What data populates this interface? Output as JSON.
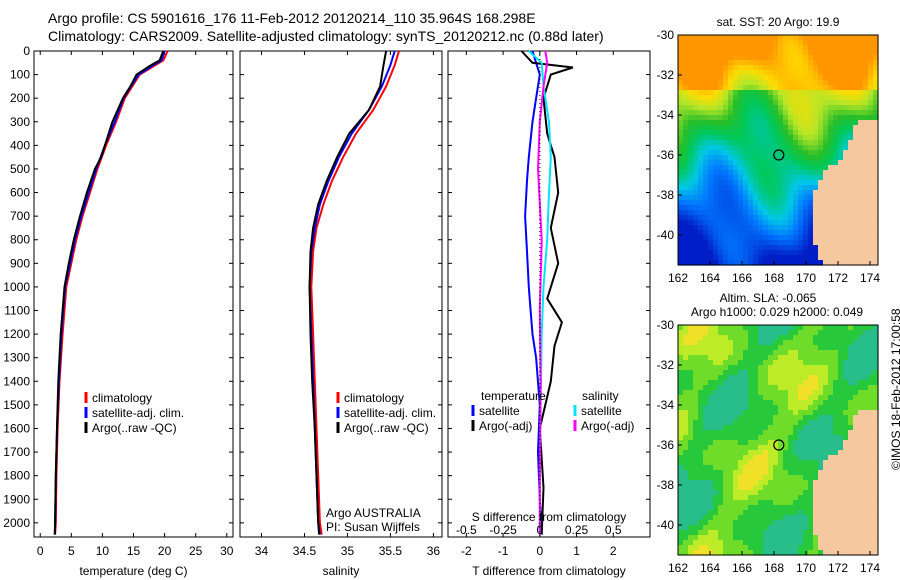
{
  "header": {
    "line1": "Argo profile: CS 5901616_176 11-Feb-2012 20120214_110 35.964S 168.298E",
    "line2": "Climatology: CARS2009. Satellite-adjusted climatology: synTS_20120212.nc (0.88d later)"
  },
  "colors": {
    "climatology": "#ff0000",
    "satellite": "#0000ff",
    "argo": "#000000",
    "sal_satellite": "#00e5ff",
    "sal_argo": "#ff00ff"
  },
  "depth_axis": {
    "ticks": [
      0,
      100,
      200,
      300,
      400,
      500,
      600,
      700,
      800,
      900,
      1000,
      1100,
      1200,
      1300,
      1400,
      1500,
      1600,
      1700,
      1800,
      1900,
      2000
    ]
  },
  "chart_data": [
    {
      "type": "line",
      "id": "temperature",
      "xlabel": "temperature (deg C)",
      "xlim": [
        -1,
        31
      ],
      "ylim": [
        2060,
        0
      ],
      "xticks": [
        0,
        5,
        10,
        15,
        20,
        25,
        30
      ],
      "legend": [
        "climatology",
        "satellite-adj. clim.",
        "Argo(..raw -QC)"
      ],
      "series": [
        {
          "name": "climatology",
          "color": "#ff0000",
          "x": [
            20.5,
            19.8,
            18.5,
            16.0,
            14.8,
            13.6,
            12.2,
            10.6,
            9.2,
            8.0,
            6.8,
            5.8,
            5.0,
            4.2,
            3.6,
            3.1,
            2.8,
            2.6,
            2.5,
            2.4
          ],
          "y": [
            0,
            40,
            60,
            100,
            150,
            200,
            300,
            400,
            500,
            600,
            700,
            800,
            900,
            1000,
            1200,
            1400,
            1600,
            1800,
            2000,
            2050
          ]
        },
        {
          "name": "satellite-adj. clim.",
          "color": "#0000ff",
          "x": [
            20.0,
            19.5,
            18.2,
            15.8,
            14.6,
            13.4,
            12.0,
            10.4,
            9.0,
            7.8,
            6.6,
            5.6,
            4.8,
            4.0,
            3.4,
            3.0,
            2.7,
            2.5,
            2.4,
            2.35
          ],
          "y": [
            0,
            40,
            60,
            100,
            150,
            200,
            300,
            400,
            500,
            600,
            700,
            800,
            900,
            1000,
            1200,
            1400,
            1600,
            1800,
            2000,
            2050
          ]
        },
        {
          "name": "Argo(..raw -QC)",
          "color": "#000000",
          "x": [
            19.8,
            19.2,
            17.8,
            15.5,
            14.5,
            13.3,
            11.6,
            9.8,
            8.8,
            7.5,
            6.4,
            5.4,
            4.6,
            3.9,
            3.3,
            2.9,
            2.7,
            2.5,
            2.4,
            2.35
          ],
          "y": [
            0,
            40,
            60,
            100,
            150,
            200,
            300,
            450,
            500,
            600,
            700,
            800,
            900,
            1000,
            1200,
            1400,
            1600,
            1800,
            2000,
            2050
          ]
        }
      ]
    },
    {
      "type": "line",
      "id": "salinity",
      "xlabel": "salinity",
      "xlim": [
        33.75,
        36.1
      ],
      "ylim": [
        2060,
        0
      ],
      "xticks": [
        34,
        34.5,
        35,
        35.5,
        36
      ],
      "xticklabels": [
        "34",
        "34.5",
        "35",
        "35.5",
        "36"
      ],
      "legend": [
        "climatology",
        "satellite-adj. clim.",
        "Argo(..raw -QC)"
      ],
      "annotation": [
        "Argo AUSTRALIA",
        "PI: Susan Wijffels"
      ],
      "series": [
        {
          "name": "climatology",
          "color": "#ff0000",
          "x": [
            35.6,
            35.55,
            35.45,
            35.3,
            35.1,
            34.95,
            34.82,
            34.72,
            34.64,
            34.6,
            34.58,
            34.6,
            34.62,
            34.64,
            34.66,
            34.68,
            34.7
          ],
          "y": [
            0,
            60,
            150,
            250,
            350,
            450,
            550,
            650,
            750,
            850,
            1000,
            1200,
            1400,
            1600,
            1800,
            2000,
            2050
          ]
        },
        {
          "name": "satellite-adj. clim.",
          "color": "#0000ff",
          "x": [
            35.55,
            35.5,
            35.4,
            35.25,
            35.05,
            34.9,
            34.78,
            34.68,
            34.62,
            34.58,
            34.56,
            34.58,
            34.6,
            34.62,
            34.64,
            34.66,
            34.68
          ],
          "y": [
            0,
            60,
            150,
            250,
            350,
            450,
            550,
            650,
            750,
            850,
            1000,
            1200,
            1400,
            1600,
            1800,
            2000,
            2050
          ]
        },
        {
          "name": "Argo(..raw -QC)",
          "color": "#000000",
          "x": [
            35.45,
            35.42,
            35.38,
            35.25,
            35.02,
            34.88,
            34.76,
            34.66,
            34.6,
            34.57,
            34.56,
            34.57,
            34.59,
            34.62,
            34.64,
            34.66,
            34.67
          ],
          "y": [
            0,
            60,
            150,
            250,
            350,
            450,
            550,
            650,
            750,
            850,
            1000,
            1200,
            1400,
            1600,
            1800,
            2000,
            2050
          ]
        }
      ]
    },
    {
      "type": "line",
      "id": "difference",
      "xlabel": "T difference from climatology",
      "xlabel2": "S difference from climatology",
      "xlim": [
        -2.5,
        3.0
      ],
      "ylim": [
        2060,
        0
      ],
      "xticks": [
        -2,
        -1,
        0,
        1,
        2
      ],
      "xticks2": [
        -0.5,
        -0.25,
        0,
        0.25,
        0.5
      ],
      "legend_titles": [
        "temperature",
        "salinity"
      ],
      "legend_temperature": [
        "satellite",
        "Argo(-adj)"
      ],
      "legend_salinity": [
        "satellite",
        "Argo(-adj)"
      ],
      "series": [
        {
          "name": "satellite",
          "group": "temperature",
          "color": "#0000ff",
          "x": [
            -0.2,
            -0.1,
            0.0,
            -0.1,
            -0.2,
            -0.3,
            -0.35,
            -0.4,
            -0.35,
            -0.3,
            -0.25,
            -0.2,
            -0.1,
            0.0,
            -0.05,
            0.0,
            0.05
          ],
          "y": [
            0,
            50,
            100,
            200,
            300,
            450,
            550,
            700,
            850,
            1000,
            1100,
            1200,
            1300,
            1500,
            1700,
            1900,
            2050
          ]
        },
        {
          "name": "Argo(-adj)",
          "group": "temperature",
          "color": "#000000",
          "x": [
            -0.5,
            -0.2,
            0.9,
            0.3,
            0.1,
            0.2,
            0.4,
            0.5,
            0.3,
            0.5,
            0.2,
            0.6,
            0.4,
            0.3,
            0.0,
            0.1,
            0.05
          ],
          "y": [
            0,
            50,
            70,
            100,
            200,
            350,
            450,
            600,
            750,
            900,
            1050,
            1150,
            1250,
            1400,
            1600,
            1850,
            2050
          ]
        },
        {
          "name": "satellite",
          "group": "salinity",
          "color": "#00e5ff",
          "x": [
            -0.3,
            0.05,
            0.1,
            0.25,
            0.3,
            0.25,
            0.2,
            0.1,
            0.05,
            0.02,
            0.0,
            0.0
          ],
          "y": [
            0,
            50,
            150,
            300,
            450,
            600,
            800,
            1000,
            1200,
            1500,
            1800,
            2050
          ]
        },
        {
          "name": "Argo(-adj)",
          "group": "salinity",
          "color": "#ff00ff",
          "x": [
            0.15,
            0.2,
            0.1,
            0.0,
            -0.05,
            0.05,
            0.0,
            0.02,
            0.0,
            0.0
          ],
          "y": [
            0,
            50,
            150,
            300,
            500,
            800,
            1100,
            1400,
            1800,
            2050
          ]
        }
      ]
    },
    {
      "type": "heatmap",
      "id": "sst-map",
      "title": "sat. SST: 20 Argo: 19.9",
      "xlim": [
        162,
        174.5
      ],
      "ylim": [
        -41.5,
        -30
      ],
      "xticks": [
        162,
        164,
        166,
        168,
        170,
        172,
        174
      ],
      "yticks": [
        -30,
        -32,
        -34,
        -36,
        -38,
        -40
      ],
      "argo_position": [
        168.3,
        -36.0
      ]
    },
    {
      "type": "heatmap",
      "id": "sla-map",
      "title_line1": "Altim. SLA: -0.065",
      "title_line2": "Argo h1000: 0.029 h2000: 0.049",
      "xlim": [
        162,
        174.5
      ],
      "ylim": [
        -41.5,
        -30
      ],
      "xticks": [
        162,
        164,
        166,
        168,
        170,
        172,
        174
      ],
      "yticks": [
        -30,
        -32,
        -34,
        -36,
        -38,
        -40
      ],
      "argo_position": [
        168.3,
        -36.0
      ]
    }
  ],
  "footer": {
    "stamp": "©IMOS 18-Feb-2012 17:00:58"
  }
}
